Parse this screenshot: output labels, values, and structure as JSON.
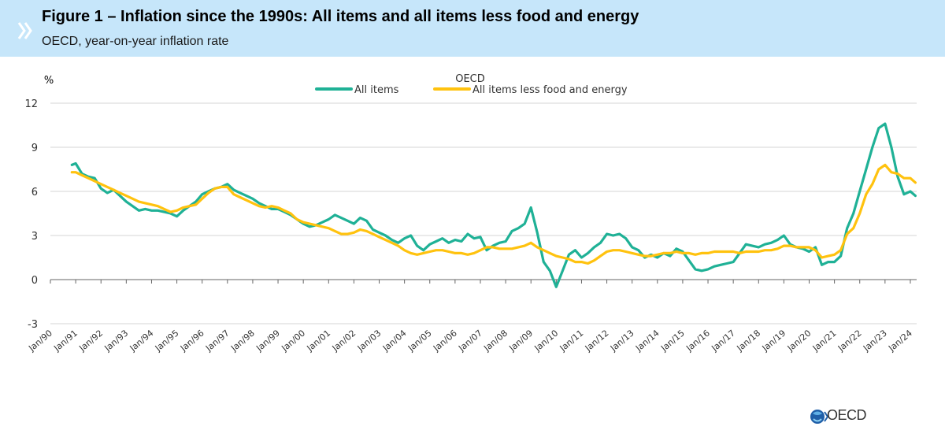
{
  "header": {
    "title": "Figure 1 – Inflation since the 1990s: All items and all items less food and energy",
    "subtitle": "OECD, year-on-year inflation rate"
  },
  "footer": {
    "logo_text": "OECD"
  },
  "colors": {
    "all_items": "#1fb196",
    "core": "#ffc20e",
    "grid": "#d6d6d6",
    "header_bg": "#c6e6fa",
    "logo_blue": "#1f5fa8"
  },
  "chart_data": {
    "type": "line",
    "title": "OECD",
    "ylabel": "%",
    "xlabel": "",
    "ylim": [
      -3,
      12
    ],
    "yticks": [
      -3,
      0,
      3,
      6,
      9,
      12
    ],
    "xlim": [
      1990.0,
      2024.25
    ],
    "grid": true,
    "legend": "top-center",
    "xtick_labels": [
      "Jan/90",
      "Jan/91",
      "Jan/92",
      "Jan/93",
      "Jan/94",
      "Jan/95",
      "Jan/96",
      "Jan/97",
      "Jan/98",
      "Jan/99",
      "Jan/00",
      "Jan/01",
      "Jan/02",
      "Jan/03",
      "Jan/04",
      "Jan/05",
      "Jan/06",
      "Jan/07",
      "Jan/08",
      "Jan/09",
      "Jan/10",
      "Jan/11",
      "Jan/12",
      "Jan/13",
      "Jan/14",
      "Jan/15",
      "Jan/16",
      "Jan/17",
      "Jan/18",
      "Jan/19",
      "Jan/20",
      "Jan/21",
      "Jan/22",
      "Jan/23",
      "Jan/24"
    ],
    "series": [
      {
        "name": "All items",
        "color": "#1fb196",
        "points": [
          [
            1990.85,
            7.8
          ],
          [
            1991.0,
            7.9
          ],
          [
            1991.25,
            7.2
          ],
          [
            1991.5,
            7.0
          ],
          [
            1991.75,
            6.9
          ],
          [
            1992.0,
            6.2
          ],
          [
            1992.25,
            5.9
          ],
          [
            1992.5,
            6.1
          ],
          [
            1992.75,
            5.7
          ],
          [
            1993.0,
            5.3
          ],
          [
            1993.25,
            5.0
          ],
          [
            1993.5,
            4.7
          ],
          [
            1993.75,
            4.8
          ],
          [
            1994.0,
            4.7
          ],
          [
            1994.25,
            4.7
          ],
          [
            1994.5,
            4.6
          ],
          [
            1994.75,
            4.5
          ],
          [
            1995.0,
            4.3
          ],
          [
            1995.25,
            4.7
          ],
          [
            1995.5,
            5.0
          ],
          [
            1995.75,
            5.3
          ],
          [
            1996.0,
            5.8
          ],
          [
            1996.25,
            6.0
          ],
          [
            1996.5,
            6.2
          ],
          [
            1996.75,
            6.3
          ],
          [
            1997.0,
            6.5
          ],
          [
            1997.25,
            6.1
          ],
          [
            1997.5,
            5.9
          ],
          [
            1997.75,
            5.7
          ],
          [
            1998.0,
            5.5
          ],
          [
            1998.25,
            5.2
          ],
          [
            1998.5,
            5.0
          ],
          [
            1998.75,
            4.8
          ],
          [
            1999.0,
            4.8
          ],
          [
            1999.25,
            4.6
          ],
          [
            1999.5,
            4.4
          ],
          [
            1999.75,
            4.1
          ],
          [
            2000.0,
            3.8
          ],
          [
            2000.25,
            3.6
          ],
          [
            2000.5,
            3.7
          ],
          [
            2000.75,
            3.9
          ],
          [
            2001.0,
            4.1
          ],
          [
            2001.25,
            4.4
          ],
          [
            2001.5,
            4.2
          ],
          [
            2001.75,
            4.0
          ],
          [
            2002.0,
            3.8
          ],
          [
            2002.25,
            4.2
          ],
          [
            2002.5,
            4.0
          ],
          [
            2002.75,
            3.4
          ],
          [
            2003.0,
            3.2
          ],
          [
            2003.25,
            3.0
          ],
          [
            2003.5,
            2.7
          ],
          [
            2003.75,
            2.5
          ],
          [
            2004.0,
            2.8
          ],
          [
            2004.25,
            3.0
          ],
          [
            2004.5,
            2.3
          ],
          [
            2004.75,
            2.0
          ],
          [
            2005.0,
            2.4
          ],
          [
            2005.25,
            2.6
          ],
          [
            2005.5,
            2.8
          ],
          [
            2005.75,
            2.5
          ],
          [
            2006.0,
            2.7
          ],
          [
            2006.25,
            2.6
          ],
          [
            2006.5,
            3.1
          ],
          [
            2006.75,
            2.8
          ],
          [
            2007.0,
            2.9
          ],
          [
            2007.25,
            2.0
          ],
          [
            2007.5,
            2.3
          ],
          [
            2007.75,
            2.5
          ],
          [
            2008.0,
            2.6
          ],
          [
            2008.25,
            3.3
          ],
          [
            2008.5,
            3.5
          ],
          [
            2008.75,
            3.8
          ],
          [
            2009.0,
            4.9
          ],
          [
            2009.25,
            3.2
          ],
          [
            2009.5,
            1.2
          ],
          [
            2009.75,
            0.6
          ],
          [
            2010.0,
            -0.5
          ],
          [
            2010.25,
            0.6
          ],
          [
            2010.5,
            1.7
          ],
          [
            2010.75,
            2.0
          ],
          [
            2011.0,
            1.5
          ],
          [
            2011.25,
            1.8
          ],
          [
            2011.5,
            2.2
          ],
          [
            2011.75,
            2.5
          ],
          [
            2012.0,
            3.1
          ],
          [
            2012.25,
            3.0
          ],
          [
            2012.5,
            3.1
          ],
          [
            2012.75,
            2.8
          ],
          [
            2013.0,
            2.2
          ],
          [
            2013.25,
            2.0
          ],
          [
            2013.5,
            1.5
          ],
          [
            2013.75,
            1.7
          ],
          [
            2014.0,
            1.5
          ],
          [
            2014.25,
            1.8
          ],
          [
            2014.5,
            1.6
          ],
          [
            2014.75,
            2.1
          ],
          [
            2015.0,
            1.9
          ],
          [
            2015.25,
            1.3
          ],
          [
            2015.5,
            0.7
          ],
          [
            2015.75,
            0.6
          ],
          [
            2016.0,
            0.7
          ],
          [
            2016.25,
            0.9
          ],
          [
            2016.5,
            1.0
          ],
          [
            2016.75,
            1.1
          ],
          [
            2017.0,
            1.2
          ],
          [
            2017.25,
            1.8
          ],
          [
            2017.5,
            2.4
          ],
          [
            2017.75,
            2.3
          ],
          [
            2018.0,
            2.2
          ],
          [
            2018.25,
            2.4
          ],
          [
            2018.5,
            2.5
          ],
          [
            2018.75,
            2.7
          ],
          [
            2019.0,
            3.0
          ],
          [
            2019.25,
            2.4
          ],
          [
            2019.5,
            2.2
          ],
          [
            2019.75,
            2.1
          ],
          [
            2020.0,
            1.9
          ],
          [
            2020.25,
            2.2
          ],
          [
            2020.5,
            1.0
          ],
          [
            2020.75,
            1.2
          ],
          [
            2021.0,
            1.2
          ],
          [
            2021.25,
            1.6
          ],
          [
            2021.5,
            3.5
          ],
          [
            2021.75,
            4.5
          ],
          [
            2022.0,
            6.0
          ],
          [
            2022.25,
            7.5
          ],
          [
            2022.5,
            9.0
          ],
          [
            2022.75,
            10.3
          ],
          [
            2023.0,
            10.6
          ],
          [
            2023.25,
            9.0
          ],
          [
            2023.5,
            7.0
          ],
          [
            2023.75,
            5.8
          ],
          [
            2024.0,
            6.0
          ],
          [
            2024.2,
            5.7
          ]
        ]
      },
      {
        "name": "All items less food and energy",
        "color": "#ffc20e",
        "points": [
          [
            1990.85,
            7.3
          ],
          [
            1991.0,
            7.3
          ],
          [
            1991.25,
            7.1
          ],
          [
            1991.5,
            6.9
          ],
          [
            1991.75,
            6.7
          ],
          [
            1992.0,
            6.5
          ],
          [
            1992.25,
            6.3
          ],
          [
            1992.5,
            6.1
          ],
          [
            1992.75,
            5.9
          ],
          [
            1993.0,
            5.7
          ],
          [
            1993.25,
            5.5
          ],
          [
            1993.5,
            5.3
          ],
          [
            1993.75,
            5.2
          ],
          [
            1994.0,
            5.1
          ],
          [
            1994.25,
            5.0
          ],
          [
            1994.5,
            4.8
          ],
          [
            1994.75,
            4.6
          ],
          [
            1995.0,
            4.7
          ],
          [
            1995.25,
            4.9
          ],
          [
            1995.5,
            5.0
          ],
          [
            1995.75,
            5.1
          ],
          [
            1996.0,
            5.5
          ],
          [
            1996.25,
            5.9
          ],
          [
            1996.5,
            6.2
          ],
          [
            1996.75,
            6.3
          ],
          [
            1997.0,
            6.3
          ],
          [
            1997.25,
            5.8
          ],
          [
            1997.5,
            5.6
          ],
          [
            1997.75,
            5.4
          ],
          [
            1998.0,
            5.2
          ],
          [
            1998.25,
            5.0
          ],
          [
            1998.5,
            4.9
          ],
          [
            1998.75,
            5.0
          ],
          [
            1999.0,
            4.9
          ],
          [
            1999.25,
            4.7
          ],
          [
            1999.5,
            4.5
          ],
          [
            1999.75,
            4.1
          ],
          [
            2000.0,
            3.9
          ],
          [
            2000.25,
            3.8
          ],
          [
            2000.5,
            3.7
          ],
          [
            2000.75,
            3.6
          ],
          [
            2001.0,
            3.5
          ],
          [
            2001.25,
            3.3
          ],
          [
            2001.5,
            3.1
          ],
          [
            2001.75,
            3.1
          ],
          [
            2002.0,
            3.2
          ],
          [
            2002.25,
            3.4
          ],
          [
            2002.5,
            3.3
          ],
          [
            2002.75,
            3.1
          ],
          [
            2003.0,
            2.9
          ],
          [
            2003.25,
            2.7
          ],
          [
            2003.5,
            2.5
          ],
          [
            2003.75,
            2.3
          ],
          [
            2004.0,
            2.0
          ],
          [
            2004.25,
            1.8
          ],
          [
            2004.5,
            1.7
          ],
          [
            2004.75,
            1.8
          ],
          [
            2005.0,
            1.9
          ],
          [
            2005.25,
            2.0
          ],
          [
            2005.5,
            2.0
          ],
          [
            2005.75,
            1.9
          ],
          [
            2006.0,
            1.8
          ],
          [
            2006.25,
            1.8
          ],
          [
            2006.5,
            1.7
          ],
          [
            2006.75,
            1.8
          ],
          [
            2007.0,
            2.0
          ],
          [
            2007.25,
            2.2
          ],
          [
            2007.5,
            2.2
          ],
          [
            2007.75,
            2.1
          ],
          [
            2008.0,
            2.1
          ],
          [
            2008.25,
            2.1
          ],
          [
            2008.5,
            2.2
          ],
          [
            2008.75,
            2.3
          ],
          [
            2009.0,
            2.5
          ],
          [
            2009.25,
            2.2
          ],
          [
            2009.5,
            2.0
          ],
          [
            2009.75,
            1.8
          ],
          [
            2010.0,
            1.6
          ],
          [
            2010.25,
            1.5
          ],
          [
            2010.5,
            1.4
          ],
          [
            2010.75,
            1.2
          ],
          [
            2011.0,
            1.2
          ],
          [
            2011.25,
            1.1
          ],
          [
            2011.5,
            1.3
          ],
          [
            2011.75,
            1.6
          ],
          [
            2012.0,
            1.9
          ],
          [
            2012.25,
            2.0
          ],
          [
            2012.5,
            2.0
          ],
          [
            2012.75,
            1.9
          ],
          [
            2013.0,
            1.8
          ],
          [
            2013.25,
            1.7
          ],
          [
            2013.5,
            1.6
          ],
          [
            2013.75,
            1.6
          ],
          [
            2014.0,
            1.7
          ],
          [
            2014.25,
            1.8
          ],
          [
            2014.5,
            1.8
          ],
          [
            2014.75,
            1.9
          ],
          [
            2015.0,
            1.8
          ],
          [
            2015.25,
            1.8
          ],
          [
            2015.5,
            1.7
          ],
          [
            2015.75,
            1.8
          ],
          [
            2016.0,
            1.8
          ],
          [
            2016.25,
            1.9
          ],
          [
            2016.5,
            1.9
          ],
          [
            2016.75,
            1.9
          ],
          [
            2017.0,
            1.9
          ],
          [
            2017.25,
            1.8
          ],
          [
            2017.5,
            1.9
          ],
          [
            2017.75,
            1.9
          ],
          [
            2018.0,
            1.9
          ],
          [
            2018.25,
            2.0
          ],
          [
            2018.5,
            2.0
          ],
          [
            2018.75,
            2.1
          ],
          [
            2019.0,
            2.3
          ],
          [
            2019.25,
            2.3
          ],
          [
            2019.5,
            2.2
          ],
          [
            2019.75,
            2.2
          ],
          [
            2020.0,
            2.2
          ],
          [
            2020.25,
            2.0
          ],
          [
            2020.5,
            1.5
          ],
          [
            2020.75,
            1.6
          ],
          [
            2021.0,
            1.7
          ],
          [
            2021.25,
            2.0
          ],
          [
            2021.5,
            3.1
          ],
          [
            2021.75,
            3.5
          ],
          [
            2022.0,
            4.5
          ],
          [
            2022.25,
            5.8
          ],
          [
            2022.5,
            6.5
          ],
          [
            2022.75,
            7.5
          ],
          [
            2023.0,
            7.8
          ],
          [
            2023.25,
            7.3
          ],
          [
            2023.5,
            7.2
          ],
          [
            2023.75,
            6.9
          ],
          [
            2024.0,
            6.9
          ],
          [
            2024.2,
            6.6
          ]
        ]
      }
    ]
  }
}
